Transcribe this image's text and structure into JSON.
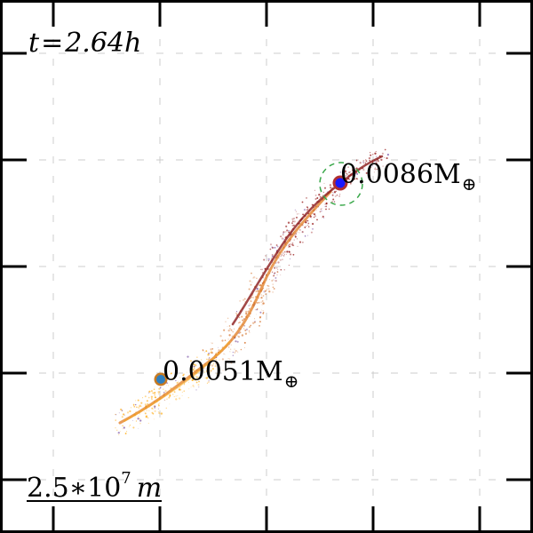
{
  "time_label": {
    "prefix": "t",
    "equals": "=",
    "value": "2.64",
    "unit": "h"
  },
  "clumps": [
    {
      "mass_value": "0.0086",
      "mass_unit": "M",
      "earth_symbol": "⊕",
      "fill_color": "#1a1aff",
      "ring_color": "#b03030",
      "hill_sphere_color": "#3aa84a"
    },
    {
      "mass_value": "0.0051",
      "mass_unit": "M",
      "earth_symbol": "⊕",
      "fill_color": "#2f7fbf",
      "ring_color": "#c77a22"
    }
  ],
  "scale_bar": {
    "mantissa": "2.5",
    "times": "∗",
    "base": "10",
    "exponent": "7",
    "unit": "m"
  },
  "colors": {
    "debris_hot": "#8b0000",
    "debris_mid": "#d2691e",
    "debris_cool": "#ffa500",
    "debris_faint": "#6a3d9a",
    "grid": "#cccccc",
    "frame": "#000000"
  }
}
